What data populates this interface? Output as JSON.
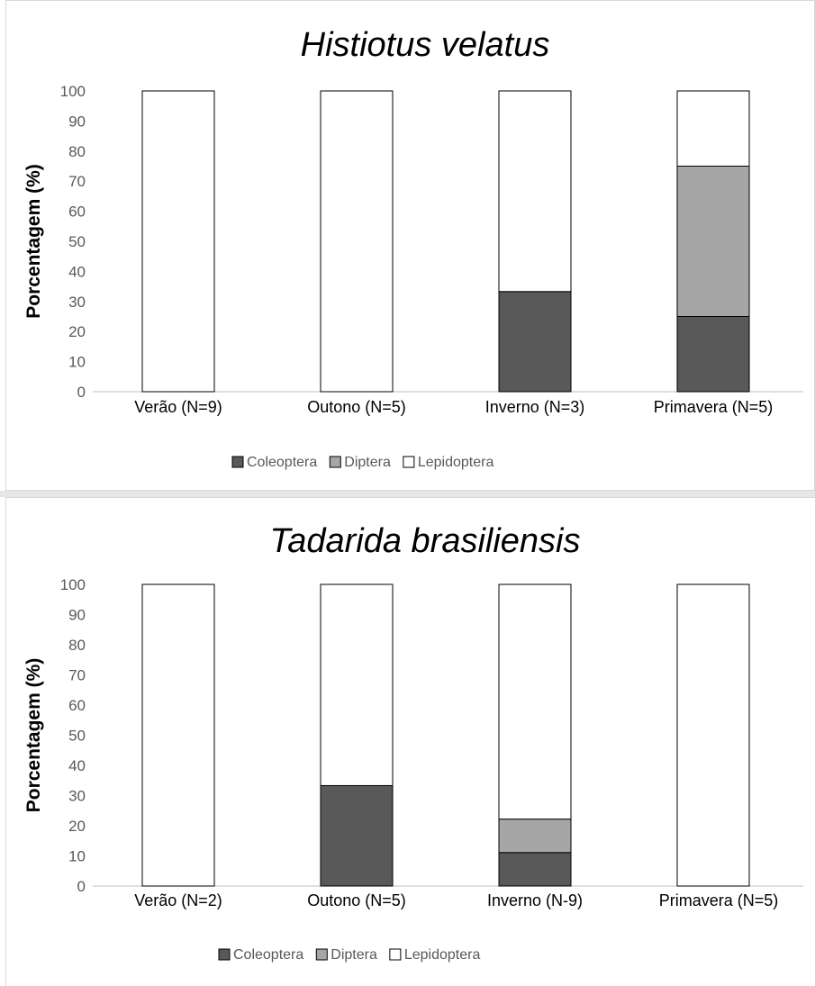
{
  "chart_data": [
    {
      "type": "bar",
      "stacked": true,
      "title": "Histiotus velatus",
      "xlabel": "",
      "ylabel": "Porcentagem (%)",
      "ylim": [
        0,
        100
      ],
      "yticks": [
        "0",
        "10",
        "20",
        "30",
        "40",
        "50",
        "60",
        "70",
        "80",
        "90",
        "100"
      ],
      "grid": false,
      "legend_position": "bottom",
      "categories": [
        "Verão (N=9)",
        "Outono (N=5)",
        "Inverno (N=3)",
        "Primavera (N=5)"
      ],
      "series": [
        {
          "name": "Coleoptera",
          "color": "#595959",
          "values": [
            0,
            0,
            33.3,
            25
          ]
        },
        {
          "name": "Diptera",
          "color": "#a6a6a6",
          "values": [
            0,
            0,
            0,
            50
          ]
        },
        {
          "name": "Lepidoptera",
          "color": "#ffffff",
          "values": [
            100,
            100,
            66.7,
            25
          ]
        }
      ]
    },
    {
      "type": "bar",
      "stacked": true,
      "title": "Tadarida brasiliensis",
      "xlabel": "",
      "ylabel": "Porcentagem (%)",
      "ylim": [
        0,
        100
      ],
      "yticks": [
        "0",
        "10",
        "20",
        "30",
        "40",
        "50",
        "60",
        "70",
        "80",
        "90",
        "100"
      ],
      "grid": false,
      "legend_position": "bottom",
      "categories": [
        "Verão (N=2)",
        "Outono (N=5)",
        "Inverno (N-9)",
        "Primavera (N=5)"
      ],
      "series": [
        {
          "name": "Coleoptera",
          "color": "#595959",
          "values": [
            0,
            33.3,
            11.1,
            0
          ]
        },
        {
          "name": "Diptera",
          "color": "#a6a6a6",
          "values": [
            0,
            0,
            11.1,
            0
          ]
        },
        {
          "name": "Lepidoptera",
          "color": "#ffffff",
          "values": [
            100,
            66.7,
            77.8,
            100
          ]
        }
      ]
    }
  ]
}
